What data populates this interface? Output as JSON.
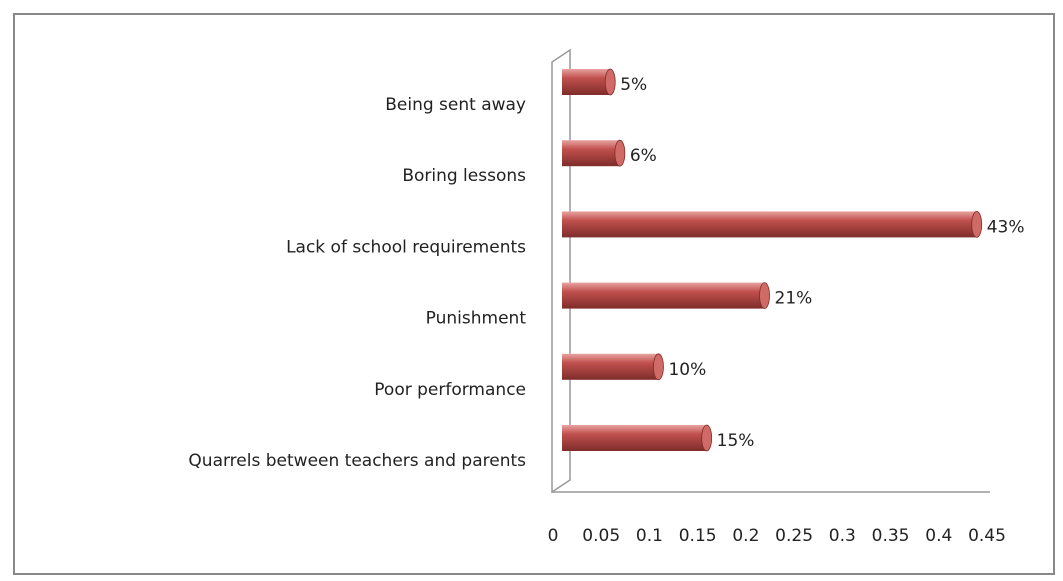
{
  "chart_data": {
    "type": "bar",
    "orientation": "horizontal",
    "categories": [
      "Being sent away",
      "Boring lessons",
      "Lack of school requirements",
      "Punishment",
      "Poor performance",
      "Quarrels between teachers and parents"
    ],
    "values": [
      0.05,
      0.06,
      0.43,
      0.21,
      0.1,
      0.15
    ],
    "value_labels": [
      "5%",
      "6%",
      "43%",
      "21%",
      "10%",
      "15%"
    ],
    "color": "#c0504d",
    "xlim": [
      0,
      0.45
    ],
    "xticks": [
      0,
      0.05,
      0.1,
      0.15,
      0.2,
      0.25,
      0.3,
      0.35,
      0.4,
      0.45
    ]
  }
}
